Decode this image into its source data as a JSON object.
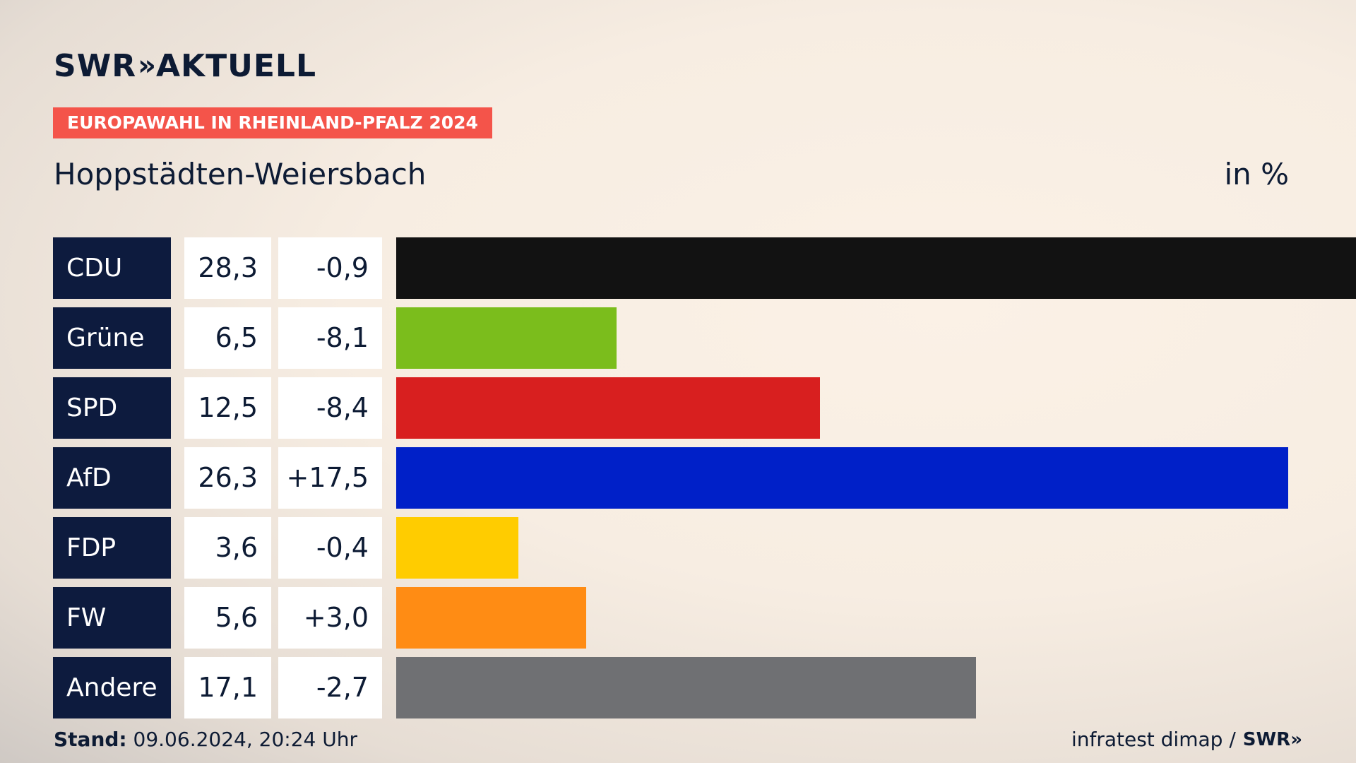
{
  "brand": {
    "logo_left": "SWR",
    "logo_chevrons": "»",
    "logo_right": "AKTUELL"
  },
  "header": {
    "tag": "EUROPAWAHL IN RHEINLAND-PFALZ 2024",
    "subtitle": "Hoppstädten-Weiersbach",
    "unit": "in %"
  },
  "footer": {
    "stand_label": "Stand:",
    "stand_value": "09.06.2024, 20:24 Uhr",
    "source": "infratest dimap /",
    "source_logo": "SWR»"
  },
  "chart_data": {
    "type": "bar",
    "categories": [
      "CDU",
      "Grüne",
      "SPD",
      "AfD",
      "FDP",
      "FW",
      "Andere"
    ],
    "values": [
      28.3,
      6.5,
      12.5,
      26.3,
      3.6,
      5.6,
      17.1
    ],
    "value_labels": [
      "28,3",
      "6,5",
      "12,5",
      "26,3",
      "3,6",
      "5,6",
      "17,1"
    ],
    "diff_labels": [
      "-0,9",
      "-8,1",
      "-8,4",
      "+17,5",
      "-0,4",
      "+3,0",
      "-2,7"
    ],
    "colors": [
      "#121212",
      "#7bbd1c",
      "#d81f1f",
      "#0020c8",
      "#ffcc00",
      "#ff8c14",
      "#6f7073"
    ],
    "orientation": "horizontal",
    "xlim": [
      0,
      28.3
    ]
  }
}
